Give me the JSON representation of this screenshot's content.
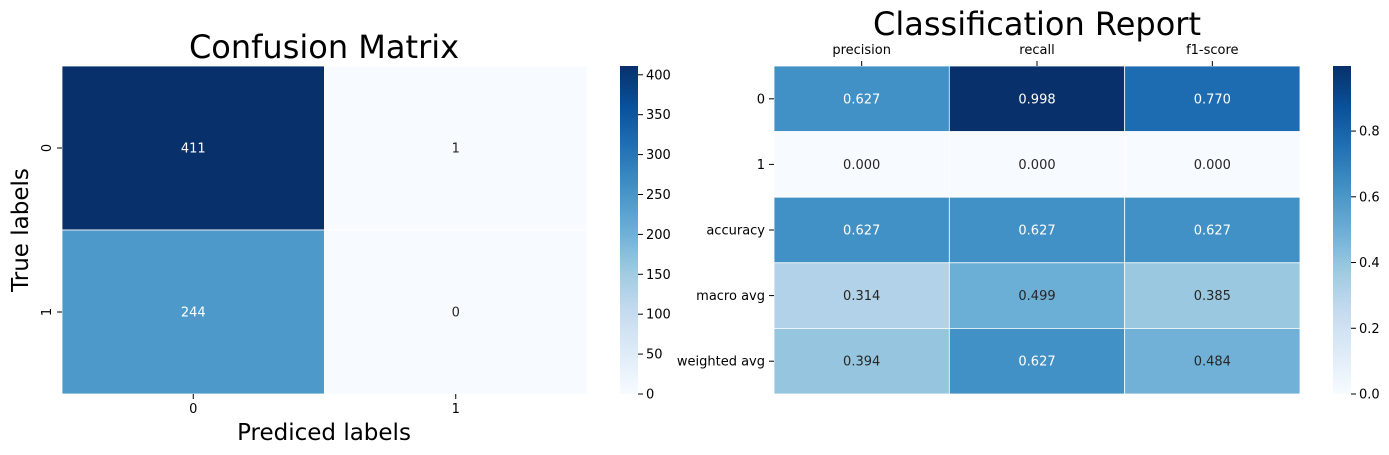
{
  "chart_data": [
    {
      "type": "heatmap",
      "title": "Confusion Matrix",
      "xlabel": "Prediced labels",
      "ylabel": "True labels",
      "x_categories": [
        "0",
        "1"
      ],
      "y_categories": [
        "0",
        "1"
      ],
      "values": [
        [
          411,
          1
        ],
        [
          244,
          0
        ]
      ],
      "value_labels": [
        [
          "411",
          "1"
        ],
        [
          "244",
          "0"
        ]
      ],
      "colormap": "Blues",
      "vmin": 0,
      "vmax": 411,
      "colorbar_ticks": [
        0,
        50,
        100,
        150,
        200,
        250,
        300,
        350,
        400
      ],
      "colorbar_tick_labels": [
        "0",
        "50",
        "100",
        "150",
        "200",
        "250",
        "300",
        "350",
        "400"
      ],
      "grid": false
    },
    {
      "type": "heatmap",
      "title": "Classification Report",
      "xlabel": "",
      "ylabel": "",
      "x_categories": [
        "precision",
        "recall",
        "f1-score"
      ],
      "x_axis_position": "top",
      "y_categories": [
        "0",
        "1",
        "accuracy",
        "macro avg",
        "weighted avg"
      ],
      "values": [
        [
          0.627,
          0.998,
          0.77
        ],
        [
          0.0,
          0.0,
          0.0
        ],
        [
          0.627,
          0.627,
          0.627
        ],
        [
          0.314,
          0.499,
          0.385
        ],
        [
          0.394,
          0.627,
          0.484
        ]
      ],
      "value_labels": [
        [
          "0.627",
          "0.998",
          "0.770"
        ],
        [
          "0.000",
          "0.000",
          "0.000"
        ],
        [
          "0.627",
          "0.627",
          "0.627"
        ],
        [
          "0.314",
          "0.499",
          "0.385"
        ],
        [
          "0.394",
          "0.627",
          "0.484"
        ]
      ],
      "colormap": "Blues",
      "vmin": 0,
      "vmax": 0.998,
      "colorbar_ticks": [
        0.0,
        0.2,
        0.4,
        0.6,
        0.8
      ],
      "colorbar_tick_labels": [
        "0.0",
        "0.2",
        "0.4",
        "0.6",
        "0.8"
      ],
      "grid": false
    }
  ],
  "colors": {
    "blues_low": "#f7fbff",
    "blues_high": "#08306b",
    "cell_border": "#ffffff",
    "text_dark": "#262626",
    "text_light": "#ffffff"
  }
}
